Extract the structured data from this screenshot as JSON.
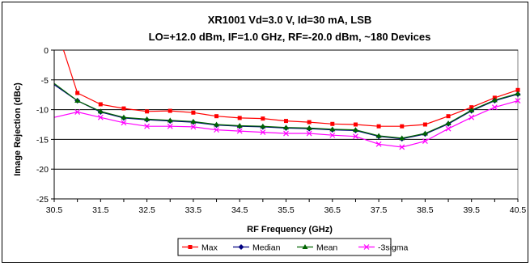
{
  "chart_data": {
    "type": "line",
    "title": "XR1001 Vd=3.0 V, Id=30 mA, LSB",
    "subtitle": "LO=+12.0 dBm, IF=1.0 GHz, RF=-20.0 dBm, ~180 Devices",
    "xlabel": "RF Frequency (GHz)",
    "ylabel": "Image Rejection (dBc)",
    "xlim": [
      30.5,
      40.5
    ],
    "ylim": [
      -25,
      0
    ],
    "xticks": [
      "30.5",
      "31.5",
      "32.5",
      "33.5",
      "34.5",
      "35.5",
      "36.5",
      "37.5",
      "38.5",
      "39.5",
      "40.5"
    ],
    "yticks": [
      "0",
      "-5",
      "-10",
      "-15",
      "-20",
      "-25"
    ],
    "grid": "horizontal",
    "legend_position": "bottom",
    "x": [
      31.0,
      31.5,
      32.0,
      32.5,
      33.0,
      33.5,
      34.0,
      34.5,
      35.0,
      35.5,
      36.0,
      36.5,
      37.0,
      37.5,
      38.0,
      38.5,
      39.0,
      39.5,
      40.0,
      40.5
    ],
    "series": [
      {
        "name": "Max",
        "color": "#ff0000",
        "marker": "square",
        "start": [
          30.7,
          0
        ],
        "values": [
          -7.2,
          -9.1,
          -9.8,
          -10.3,
          -10.2,
          -10.5,
          -11.1,
          -11.4,
          -11.5,
          -11.9,
          -12.1,
          -12.4,
          -12.5,
          -12.8,
          -12.8,
          -12.5,
          -11.1,
          -9.6,
          -8.0,
          -6.7
        ]
      },
      {
        "name": "Median",
        "color": "#000080",
        "marker": "diamond",
        "start": [
          30.5,
          -5.8
        ],
        "values": [
          -8.5,
          -10.4,
          -11.4,
          -11.7,
          -11.9,
          -12.1,
          -12.6,
          -12.8,
          -12.9,
          -13.1,
          -13.2,
          -13.4,
          -13.5,
          -14.5,
          -14.9,
          -14.1,
          -12.4,
          -10.2,
          -8.5,
          -7.4
        ]
      },
      {
        "name": "Mean",
        "color": "#006400",
        "marker": "triangle",
        "start": [
          30.5,
          -5.6
        ],
        "values": [
          -8.5,
          -10.3,
          -11.3,
          -11.6,
          -11.8,
          -12.0,
          -12.5,
          -12.7,
          -12.8,
          -13.0,
          -13.1,
          -13.3,
          -13.4,
          -14.4,
          -14.8,
          -14.0,
          -12.3,
          -10.1,
          -8.4,
          -7.3
        ]
      },
      {
        "name": "-3sigma",
        "color": "#ff00ff",
        "marker": "x",
        "start": [
          30.5,
          -11.3
        ],
        "values": [
          -10.4,
          -11.3,
          -12.2,
          -12.8,
          -12.8,
          -12.9,
          -13.4,
          -13.6,
          -13.8,
          -14.0,
          -14.0,
          -14.3,
          -14.5,
          -15.8,
          -16.3,
          -15.3,
          -13.2,
          -11.3,
          -9.6,
          -8.5
        ]
      }
    ]
  }
}
